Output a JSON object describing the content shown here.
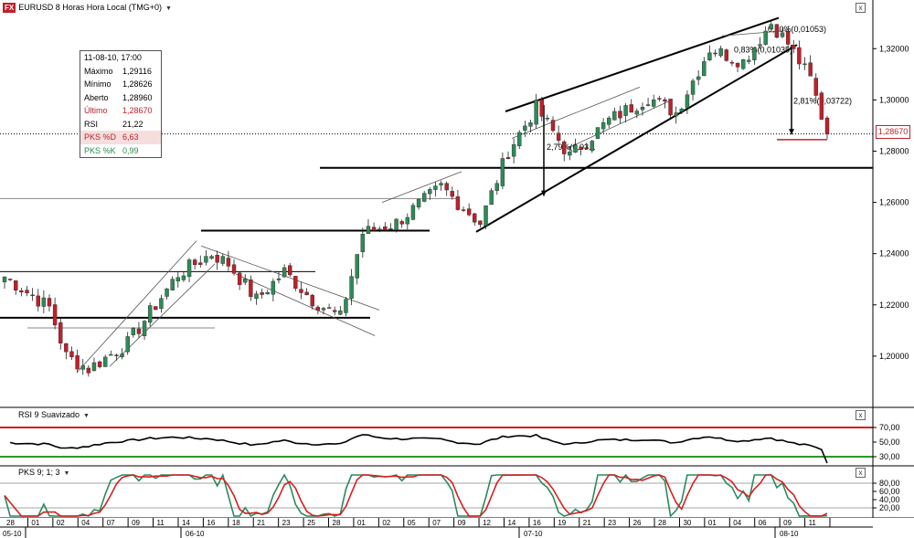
{
  "header": {
    "badge": "FX",
    "symbol_title": "EURUSD 8 Horas Hora Local (TMG+0)",
    "close_label": "x"
  },
  "info_box": {
    "datetime": "11-08-10, 17:00",
    "rows": [
      {
        "label": "Máximo",
        "value": "1,29116"
      },
      {
        "label": "Mínimo",
        "value": "1,28626"
      },
      {
        "label": "Aberto",
        "value": "1,28960"
      },
      {
        "label": "Último",
        "value": "1,28670"
      },
      {
        "label": "RSI",
        "value": "21,22"
      },
      {
        "label": "PKS %D",
        "value": "6,63"
      },
      {
        "label": "PKS %K",
        "value": "0,99"
      }
    ]
  },
  "last_price_label": "1,28670",
  "colors": {
    "up": "#2e8b57",
    "down": "#c0202a",
    "rsi_band": "#d42020",
    "rsi_low": "#2a9a2a",
    "pks_d": "#d42020",
    "pks_k": "#2a8a5e"
  },
  "chart_data": [
    {
      "type": "candlestick",
      "title": "EURUSD 8 Horas Hora Local (TMG+0)",
      "ylim": [
        1.18,
        1.334
      ],
      "yticks": [
        "1,20000",
        "1,22000",
        "1,24000",
        "1,26000",
        "1,28000",
        "1,30000",
        "1,32000"
      ],
      "ytick_values": [
        1.2,
        1.22,
        1.24,
        1.26,
        1.28,
        1.3,
        1.32
      ],
      "last": 1.2867,
      "anchors": [
        {
          "i": 0,
          "p": 1.231
        },
        {
          "i": 8,
          "p": 1.219
        },
        {
          "i": 11,
          "p": 1.2
        },
        {
          "i": 15,
          "p": 1.195
        },
        {
          "i": 22,
          "p": 1.205
        },
        {
          "i": 31,
          "p": 1.232
        },
        {
          "i": 37,
          "p": 1.24
        },
        {
          "i": 40,
          "p": 1.236
        },
        {
          "i": 45,
          "p": 1.222
        },
        {
          "i": 50,
          "p": 1.233
        },
        {
          "i": 55,
          "p": 1.222
        },
        {
          "i": 60,
          "p": 1.215
        },
        {
          "i": 64,
          "p": 1.248
        },
        {
          "i": 70,
          "p": 1.252
        },
        {
          "i": 78,
          "p": 1.266
        },
        {
          "i": 85,
          "p": 1.252
        },
        {
          "i": 90,
          "p": 1.28
        },
        {
          "i": 95,
          "p": 1.297
        },
        {
          "i": 101,
          "p": 1.278
        },
        {
          "i": 108,
          "p": 1.292
        },
        {
          "i": 115,
          "p": 1.301
        },
        {
          "i": 120,
          "p": 1.295
        },
        {
          "i": 126,
          "p": 1.32
        },
        {
          "i": 132,
          "p": 1.315
        },
        {
          "i": 137,
          "p": 1.33
        },
        {
          "i": 140,
          "p": 1.322
        },
        {
          "i": 144,
          "p": 1.308
        },
        {
          "i": 147,
          "p": 1.2867
        }
      ],
      "annotations": [
        "2,79%(0,03...",
        "0,80%(0,01053)",
        "0,83%(0,01035)",
        "2,81%(0,03722)"
      ],
      "levels": [
        1.2735,
        1.249,
        1.215,
        1.233
      ]
    },
    {
      "type": "line",
      "title": "RSI 9 Suavizado",
      "ylim": [
        20,
        80
      ],
      "yticks": [
        "70,00",
        "50,00",
        "30,00"
      ],
      "ytick_values": [
        70,
        50,
        30
      ],
      "bands": [
        70,
        30
      ],
      "last": 21.22
    },
    {
      "type": "line",
      "title": "PKS 9; 1; 3",
      "ylim": [
        0,
        100
      ],
      "yticks": [
        "80,00",
        "60,00",
        "40,00",
        "20,00"
      ],
      "ytick_values": [
        80,
        60,
        40,
        20
      ],
      "series": [
        {
          "name": "PKS %D",
          "last": 6.63
        },
        {
          "name": "PKS %K",
          "last": 0.99
        }
      ]
    }
  ],
  "x_axis": {
    "days": [
      "28",
      "01",
      "02",
      "04",
      "07",
      "09",
      "11",
      "14",
      "16",
      "18",
      "21",
      "23",
      "25",
      "28",
      "01",
      "02",
      "05",
      "07",
      "09",
      "12",
      "14",
      "16",
      "19",
      "21",
      "23",
      "26",
      "28",
      "30",
      "01",
      "04",
      "06",
      "09",
      "11"
    ],
    "months": [
      "05-10",
      "06-10",
      "07-10",
      "08-10"
    ]
  }
}
